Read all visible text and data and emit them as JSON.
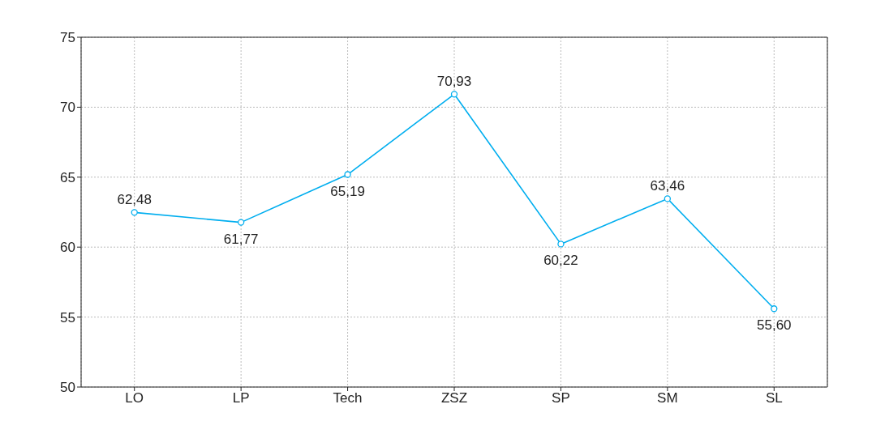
{
  "chart_data": {
    "type": "line",
    "categories": [
      "LO",
      "LP",
      "Tech",
      "ZSZ",
      "SP",
      "SM",
      "SL"
    ],
    "series": [
      {
        "color": "#00aeef",
        "values": [
          62.48,
          61.77,
          65.19,
          70.93,
          60.22,
          63.46,
          55.6
        ],
        "value_labels": [
          "62,48",
          "61,77",
          "65,19",
          "70,93",
          "60,22",
          "63,46",
          "55,60"
        ]
      }
    ],
    "ylim": [
      50,
      75
    ],
    "yticks": [
      50,
      55,
      60,
      65,
      70,
      75
    ],
    "grid": true,
    "marker": "circle",
    "line_style": "solid"
  }
}
